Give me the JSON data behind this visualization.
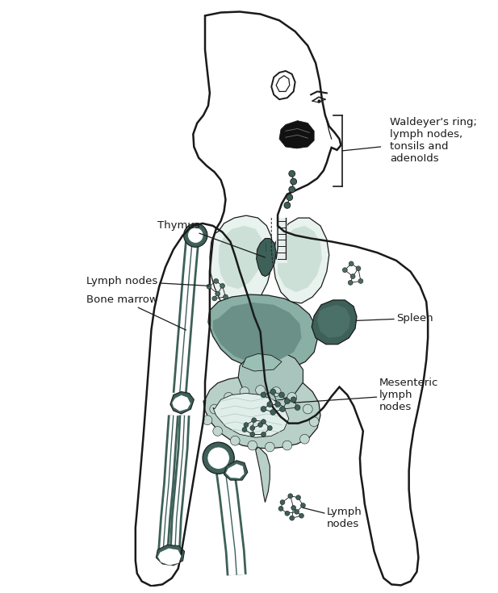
{
  "background_color": "#ffffff",
  "body_col": "#1a1a1a",
  "dark": "#3d6058",
  "light": "#b8d0c8",
  "lighter": "#ddeee8",
  "lung_color": "#e8f2ee",
  "lung_shade": "#cce0d8",
  "liver_color": "#8ab0a5",
  "liver_shade": "#6a9088",
  "intestine_color": "#d0e5dc",
  "colon_color": "#b8d0c8",
  "labels": {
    "waldeyers": "Waldeyer's ring;\nlymph nodes,\ntonsils and\nadenoIds",
    "thymus": "Thymus",
    "lymph_nodes": "Lymph nodes",
    "bone_marrow": "Bone marrow",
    "spleen": "Spleen",
    "mesenteric": "Mesenteric\nlymph\nnodes",
    "lymph_nodes_bottom": "Lymph\nnodes"
  }
}
